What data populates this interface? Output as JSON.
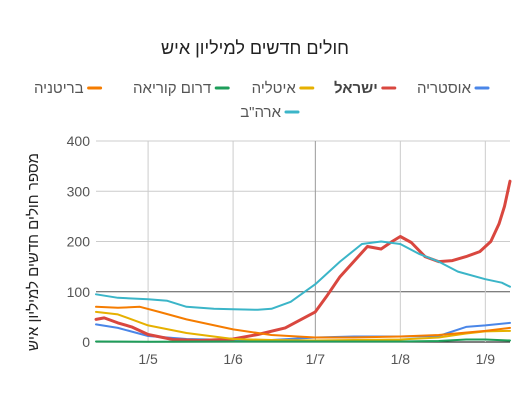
{
  "chart_data": {
    "type": "line",
    "title": "חולים חדשים למיליון איש",
    "ylabel": "מספר חולים חדשים למיליון איש",
    "xlabel": "",
    "ylim": [
      0,
      400
    ],
    "yticks": [
      0,
      100,
      200,
      300,
      400
    ],
    "xlim": [
      "2020-04-12",
      "2020-09-10"
    ],
    "xticks": [
      {
        "label": "1/5",
        "date": "2020-05-01"
      },
      {
        "label": "1/6",
        "date": "2020-06-01"
      },
      {
        "label": "1/7",
        "date": "2020-07-01"
      },
      {
        "label": "1/8",
        "date": "2020-08-01"
      },
      {
        "label": "1/9",
        "date": "2020-09-01"
      }
    ],
    "grid": true,
    "legend_position": "top",
    "series": [
      {
        "name": "אוסטריה",
        "color": "#4a86e8",
        "bold": false,
        "points": [
          [
            "2020-04-12",
            35
          ],
          [
            "2020-04-20",
            28
          ],
          [
            "2020-05-01",
            12
          ],
          [
            "2020-05-15",
            6
          ],
          [
            "2020-06-01",
            4
          ],
          [
            "2020-06-15",
            4
          ],
          [
            "2020-07-01",
            9
          ],
          [
            "2020-07-15",
            11
          ],
          [
            "2020-08-01",
            11
          ],
          [
            "2020-08-15",
            12
          ],
          [
            "2020-08-25",
            30
          ],
          [
            "2020-09-01",
            33
          ],
          [
            "2020-09-10",
            38
          ]
        ]
      },
      {
        "name": "ישראל",
        "color": "#d9473f",
        "bold": true,
        "points": [
          [
            "2020-04-12",
            45
          ],
          [
            "2020-04-15",
            48
          ],
          [
            "2020-04-20",
            38
          ],
          [
            "2020-04-25",
            30
          ],
          [
            "2020-05-01",
            15
          ],
          [
            "2020-05-10",
            5
          ],
          [
            "2020-05-20",
            3
          ],
          [
            "2020-06-01",
            6
          ],
          [
            "2020-06-10",
            15
          ],
          [
            "2020-06-20",
            28
          ],
          [
            "2020-07-01",
            60
          ],
          [
            "2020-07-05",
            90
          ],
          [
            "2020-07-10",
            130
          ],
          [
            "2020-07-15",
            160
          ],
          [
            "2020-07-20",
            190
          ],
          [
            "2020-07-25",
            185
          ],
          [
            "2020-07-29",
            200
          ],
          [
            "2020-08-01",
            210
          ],
          [
            "2020-08-05",
            198
          ],
          [
            "2020-08-10",
            170
          ],
          [
            "2020-08-15",
            160
          ],
          [
            "2020-08-20",
            162
          ],
          [
            "2020-08-25",
            170
          ],
          [
            "2020-08-30",
            180
          ],
          [
            "2020-09-03",
            200
          ],
          [
            "2020-09-06",
            235
          ],
          [
            "2020-09-08",
            270
          ],
          [
            "2020-09-10",
            320
          ]
        ]
      },
      {
        "name": "איטליה",
        "color": "#e6b000",
        "bold": false,
        "points": [
          [
            "2020-04-12",
            60
          ],
          [
            "2020-04-20",
            55
          ],
          [
            "2020-05-01",
            33
          ],
          [
            "2020-05-15",
            18
          ],
          [
            "2020-06-01",
            6
          ],
          [
            "2020-06-15",
            4
          ],
          [
            "2020-07-01",
            3
          ],
          [
            "2020-07-15",
            4
          ],
          [
            "2020-08-01",
            5
          ],
          [
            "2020-08-15",
            9
          ],
          [
            "2020-08-25",
            17
          ],
          [
            "2020-09-01",
            21
          ],
          [
            "2020-09-10",
            22
          ]
        ]
      },
      {
        "name": "דרום קוריאה",
        "color": "#1e9e5a",
        "bold": false,
        "points": [
          [
            "2020-04-12",
            1
          ],
          [
            "2020-05-01",
            0.5
          ],
          [
            "2020-06-01",
            1
          ],
          [
            "2020-07-01",
            1
          ],
          [
            "2020-08-01",
            1
          ],
          [
            "2020-08-15",
            2
          ],
          [
            "2020-08-25",
            5
          ],
          [
            "2020-09-01",
            5
          ],
          [
            "2020-09-10",
            3
          ]
        ]
      },
      {
        "name": "בריטניה",
        "color": "#f57c00",
        "bold": false,
        "points": [
          [
            "2020-04-12",
            70
          ],
          [
            "2020-04-20",
            68
          ],
          [
            "2020-04-28",
            70
          ],
          [
            "2020-05-05",
            60
          ],
          [
            "2020-05-15",
            45
          ],
          [
            "2020-06-01",
            25
          ],
          [
            "2020-06-15",
            14
          ],
          [
            "2020-07-01",
            9
          ],
          [
            "2020-07-15",
            9
          ],
          [
            "2020-08-01",
            11
          ],
          [
            "2020-08-15",
            14
          ],
          [
            "2020-09-01",
            22
          ],
          [
            "2020-09-10",
            28
          ]
        ]
      },
      {
        "name": "ארה\"ב",
        "color": "#3bb5c8",
        "bold": false,
        "points": [
          [
            "2020-04-12",
            95
          ],
          [
            "2020-04-20",
            88
          ],
          [
            "2020-05-01",
            85
          ],
          [
            "2020-05-08",
            82
          ],
          [
            "2020-05-15",
            70
          ],
          [
            "2020-05-25",
            66
          ],
          [
            "2020-06-01",
            65
          ],
          [
            "2020-06-10",
            64
          ],
          [
            "2020-06-15",
            66
          ],
          [
            "2020-06-22",
            80
          ],
          [
            "2020-07-01",
            115
          ],
          [
            "2020-07-10",
            160
          ],
          [
            "2020-07-18",
            195
          ],
          [
            "2020-07-25",
            200
          ],
          [
            "2020-08-01",
            195
          ],
          [
            "2020-08-08",
            175
          ],
          [
            "2020-08-15",
            160
          ],
          [
            "2020-08-22",
            140
          ],
          [
            "2020-09-01",
            125
          ],
          [
            "2020-09-07",
            118
          ],
          [
            "2020-09-10",
            110
          ]
        ]
      }
    ]
  }
}
